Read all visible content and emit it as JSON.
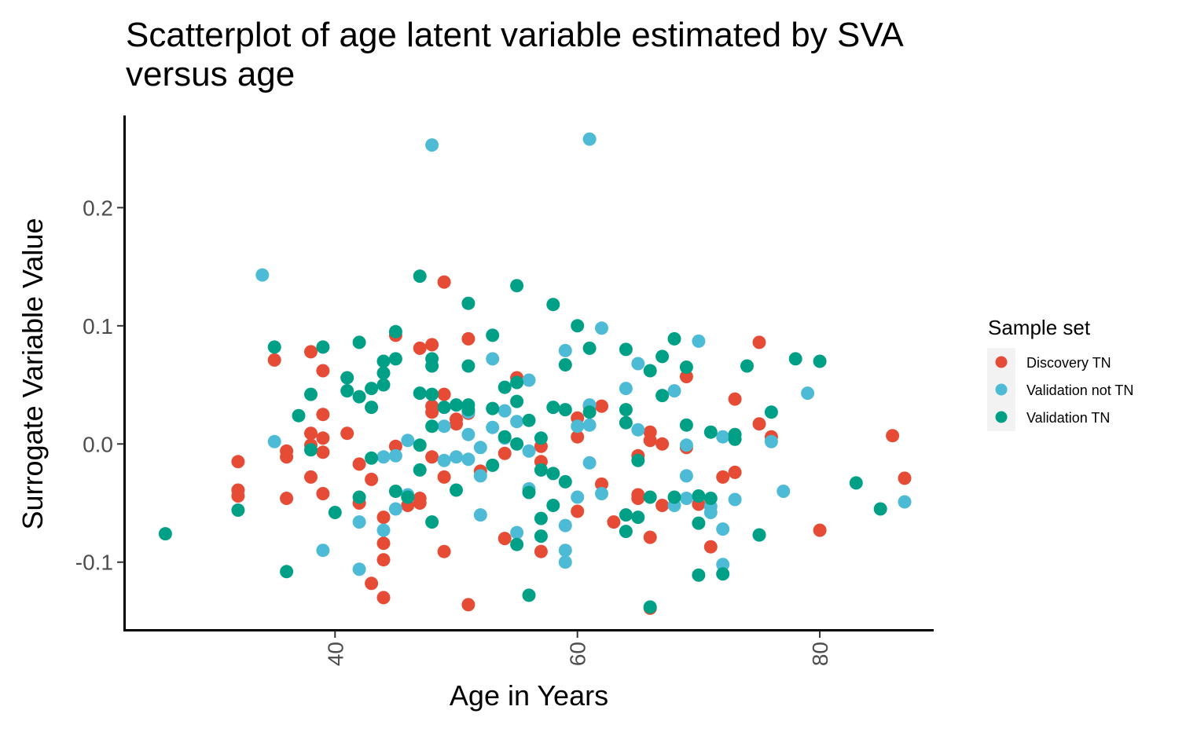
{
  "chart_data": {
    "type": "scatter",
    "title": "Scatterplot of age latent variable estimated by SVA versus age",
    "xlabel": "Age in Years",
    "ylabel": "Surrogate Variable Value",
    "xlim": [
      22.6,
      89.4
    ],
    "ylim": [
      -0.158,
      0.278
    ],
    "x_ticks": [
      40,
      60,
      80
    ],
    "x_tick_labels": [
      "40",
      "60",
      "80"
    ],
    "y_ticks": [
      -0.1,
      0.0,
      0.1,
      0.2
    ],
    "y_tick_labels": [
      "-0.1",
      "0.0",
      "0.1",
      "0.2"
    ],
    "grid": false,
    "legend": {
      "title": "Sample set",
      "placement": "right"
    },
    "series": [
      {
        "name": "Discovery TN",
        "color": "#E64B35",
        "points": [
          [
            32,
            -0.015
          ],
          [
            32,
            -0.039
          ],
          [
            32,
            -0.044
          ],
          [
            35,
            0.071
          ],
          [
            36,
            -0.006
          ],
          [
            36,
            -0.011
          ],
          [
            36,
            -0.046
          ],
          [
            38,
            0.078
          ],
          [
            38,
            0.009
          ],
          [
            38,
            -0.001
          ],
          [
            38,
            -0.028
          ],
          [
            39,
            0.062
          ],
          [
            39,
            0.025
          ],
          [
            39,
            0.005
          ],
          [
            39,
            -0.007
          ],
          [
            39,
            -0.042
          ],
          [
            41,
            0.009
          ],
          [
            42,
            -0.017
          ],
          [
            42,
            -0.05
          ],
          [
            43,
            -0.03
          ],
          [
            43,
            -0.118
          ],
          [
            44,
            -0.062
          ],
          [
            44,
            -0.084
          ],
          [
            44,
            -0.098
          ],
          [
            44,
            -0.13
          ],
          [
            45,
            0.092
          ],
          [
            45,
            -0.002
          ],
          [
            46,
            -0.044
          ],
          [
            46,
            -0.052
          ],
          [
            47,
            0.081
          ],
          [
            47,
            -0.046
          ],
          [
            47,
            -0.05
          ],
          [
            48,
            0.084
          ],
          [
            48,
            0.032
          ],
          [
            48,
            0.027
          ],
          [
            48,
            -0.011
          ],
          [
            49,
            0.137
          ],
          [
            49,
            0.042
          ],
          [
            49,
            -0.028
          ],
          [
            49,
            -0.091
          ],
          [
            50,
            0.021
          ],
          [
            50,
            0.017
          ],
          [
            51,
            0.089
          ],
          [
            51,
            0.026
          ],
          [
            51,
            -0.136
          ],
          [
            52,
            -0.023
          ],
          [
            54,
            -0.008
          ],
          [
            54,
            -0.08
          ],
          [
            55,
            0.056
          ],
          [
            57,
            -0.002
          ],
          [
            57,
            -0.015
          ],
          [
            57,
            -0.091
          ],
          [
            60,
            0.022
          ],
          [
            60,
            0.006
          ],
          [
            60,
            -0.057
          ],
          [
            61,
            0.032
          ],
          [
            62,
            0.032
          ],
          [
            62,
            -0.034
          ],
          [
            63,
            -0.066
          ],
          [
            65,
            -0.01
          ],
          [
            65,
            -0.043
          ],
          [
            65,
            -0.046
          ],
          [
            66,
            0.01
          ],
          [
            66,
            0.003
          ],
          [
            66,
            -0.079
          ],
          [
            66,
            -0.139
          ],
          [
            67,
            0.0
          ],
          [
            67,
            -0.052
          ],
          [
            69,
            0.057
          ],
          [
            69,
            -0.003
          ],
          [
            70,
            -0.051
          ],
          [
            71,
            -0.087
          ],
          [
            72,
            -0.028
          ],
          [
            73,
            0.038
          ],
          [
            73,
            -0.024
          ],
          [
            75,
            0.086
          ],
          [
            75,
            0.017
          ],
          [
            76,
            0.006
          ],
          [
            80,
            -0.073
          ],
          [
            86,
            0.007
          ],
          [
            87,
            -0.029
          ]
        ]
      },
      {
        "name": "Validation not TN",
        "color": "#4DBBD5",
        "points": [
          [
            34,
            0.143
          ],
          [
            35,
            0.002
          ],
          [
            39,
            -0.09
          ],
          [
            42,
            -0.066
          ],
          [
            42,
            -0.106
          ],
          [
            44,
            -0.011
          ],
          [
            44,
            -0.073
          ],
          [
            45,
            -0.01
          ],
          [
            45,
            -0.055
          ],
          [
            46,
            0.003
          ],
          [
            46,
            -0.043
          ],
          [
            48,
            0.253
          ],
          [
            49,
            0.015
          ],
          [
            49,
            -0.014
          ],
          [
            50,
            -0.011
          ],
          [
            51,
            0.027
          ],
          [
            51,
            0.008
          ],
          [
            51,
            -0.013
          ],
          [
            52,
            -0.003
          ],
          [
            52,
            -0.027
          ],
          [
            52,
            -0.06
          ],
          [
            53,
            0.072
          ],
          [
            53,
            0.014
          ],
          [
            54,
            0.028
          ],
          [
            54,
            0.005
          ],
          [
            55,
            0.019
          ],
          [
            55,
            -0.075
          ],
          [
            56,
            0.054
          ],
          [
            56,
            -0.006
          ],
          [
            56,
            -0.038
          ],
          [
            59,
            0.079
          ],
          [
            59,
            -0.069
          ],
          [
            59,
            -0.09
          ],
          [
            59,
            -0.1
          ],
          [
            60,
            0.015
          ],
          [
            60,
            -0.045
          ],
          [
            61,
            0.258
          ],
          [
            61,
            0.033
          ],
          [
            61,
            0.016
          ],
          [
            61,
            -0.016
          ],
          [
            62,
            0.098
          ],
          [
            62,
            -0.042
          ],
          [
            64,
            0.047
          ],
          [
            65,
            0.068
          ],
          [
            65,
            0.012
          ],
          [
            68,
            0.045
          ],
          [
            68,
            -0.052
          ],
          [
            69,
            -0.001
          ],
          [
            69,
            -0.027
          ],
          [
            69,
            -0.046
          ],
          [
            70,
            0.087
          ],
          [
            71,
            -0.053
          ],
          [
            71,
            -0.058
          ],
          [
            72,
            0.006
          ],
          [
            72,
            -0.072
          ],
          [
            72,
            -0.102
          ],
          [
            73,
            -0.047
          ],
          [
            75,
            -0.077
          ],
          [
            76,
            0.002
          ],
          [
            77,
            -0.04
          ],
          [
            79,
            0.043
          ],
          [
            87,
            -0.049
          ]
        ]
      },
      {
        "name": "Validation TN",
        "color": "#00A087",
        "points": [
          [
            26,
            -0.076
          ],
          [
            32,
            -0.056
          ],
          [
            35,
            0.082
          ],
          [
            36,
            -0.108
          ],
          [
            37,
            0.024
          ],
          [
            38,
            0.042
          ],
          [
            38,
            -0.005
          ],
          [
            39,
            0.082
          ],
          [
            40,
            -0.058
          ],
          [
            41,
            0.056
          ],
          [
            41,
            0.045
          ],
          [
            42,
            0.086
          ],
          [
            42,
            0.04
          ],
          [
            42,
            -0.045
          ],
          [
            43,
            0.047
          ],
          [
            43,
            0.031
          ],
          [
            43,
            -0.012
          ],
          [
            44,
            0.07
          ],
          [
            44,
            0.06
          ],
          [
            44,
            0.05
          ],
          [
            45,
            0.095
          ],
          [
            45,
            0.072
          ],
          [
            45,
            -0.04
          ],
          [
            46,
            -0.045
          ],
          [
            47,
            0.142
          ],
          [
            47,
            0.043
          ],
          [
            47,
            -0.001
          ],
          [
            47,
            -0.022
          ],
          [
            48,
            0.072
          ],
          [
            48,
            0.066
          ],
          [
            48,
            0.042
          ],
          [
            48,
            0.015
          ],
          [
            48,
            -0.066
          ],
          [
            49,
            0.031
          ],
          [
            50,
            0.033
          ],
          [
            50,
            -0.039
          ],
          [
            51,
            0.119
          ],
          [
            51,
            0.066
          ],
          [
            51,
            0.033
          ],
          [
            51,
            0.029
          ],
          [
            53,
            0.092
          ],
          [
            53,
            0.03
          ],
          [
            53,
            -0.018
          ],
          [
            54,
            0.048
          ],
          [
            54,
            0.006
          ],
          [
            55,
            0.134
          ],
          [
            55,
            0.052
          ],
          [
            55,
            0.036
          ],
          [
            55,
            0.0
          ],
          [
            55,
            -0.085
          ],
          [
            56,
            0.02
          ],
          [
            56,
            -0.041
          ],
          [
            56,
            -0.128
          ],
          [
            57,
            0.005
          ],
          [
            57,
            -0.022
          ],
          [
            57,
            -0.063
          ],
          [
            57,
            -0.078
          ],
          [
            58,
            0.118
          ],
          [
            58,
            0.031
          ],
          [
            58,
            -0.025
          ],
          [
            58,
            -0.052
          ],
          [
            59,
            0.067
          ],
          [
            59,
            0.029
          ],
          [
            59,
            -0.032
          ],
          [
            60,
            0.1
          ],
          [
            61,
            0.081
          ],
          [
            61,
            0.027
          ],
          [
            64,
            0.08
          ],
          [
            64,
            0.029
          ],
          [
            64,
            0.018
          ],
          [
            64,
            -0.06
          ],
          [
            64,
            -0.074
          ],
          [
            65,
            -0.014
          ],
          [
            65,
            -0.062
          ],
          [
            66,
            0.062
          ],
          [
            66,
            -0.045
          ],
          [
            66,
            -0.138
          ],
          [
            67,
            0.074
          ],
          [
            67,
            0.041
          ],
          [
            68,
            0.089
          ],
          [
            68,
            -0.045
          ],
          [
            69,
            0.065
          ],
          [
            69,
            0.016
          ],
          [
            70,
            -0.044
          ],
          [
            70,
            -0.067
          ],
          [
            70,
            -0.111
          ],
          [
            71,
            0.01
          ],
          [
            71,
            -0.046
          ],
          [
            72,
            -0.11
          ],
          [
            73,
            0.008
          ],
          [
            73,
            0.004
          ],
          [
            74,
            0.066
          ],
          [
            75,
            -0.077
          ],
          [
            76,
            0.027
          ],
          [
            78,
            0.072
          ],
          [
            80,
            0.07
          ],
          [
            83,
            -0.033
          ],
          [
            85,
            -0.055
          ]
        ]
      }
    ]
  }
}
